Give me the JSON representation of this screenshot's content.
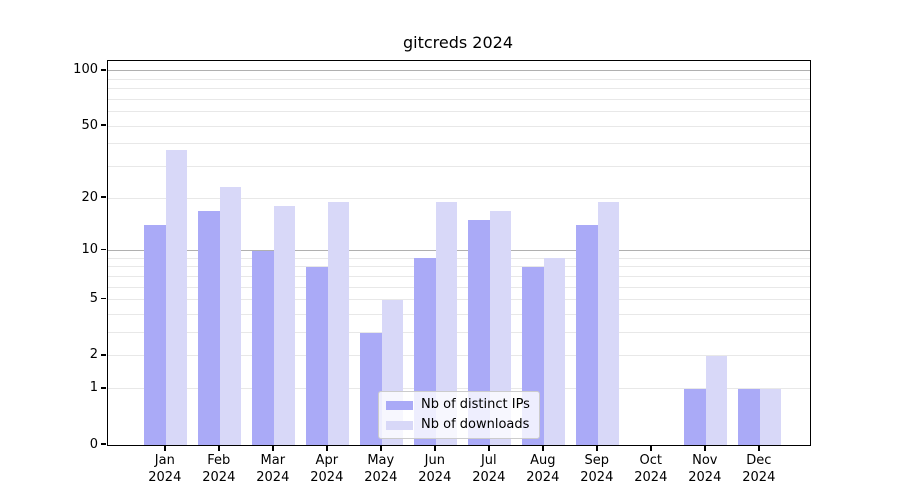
{
  "chart_data": {
    "type": "bar",
    "title": "gitcreds 2024",
    "scale": "log1p",
    "ylim": [
      0,
      113
    ],
    "yticks": [
      0,
      1,
      2,
      5,
      10,
      20,
      50,
      100
    ],
    "major_gridlines": [
      10,
      100
    ],
    "minor_gridlines": [
      1,
      2,
      3,
      4,
      5,
      6,
      7,
      8,
      9,
      20,
      30,
      40,
      50,
      60,
      70,
      80,
      90
    ],
    "grid": true,
    "legend_position": "lower center",
    "categories": [
      "Jan 2024",
      "Feb 2024",
      "Mar 2024",
      "Apr 2024",
      "May 2024",
      "Jun 2024",
      "Jul 2024",
      "Aug 2024",
      "Sep 2024",
      "Oct 2024",
      "Nov 2024",
      "Dec 2024"
    ],
    "series": [
      {
        "name": "Nb of distinct IPs",
        "color": "#aaaaf7",
        "values": [
          14,
          17,
          10,
          8,
          3,
          9,
          15,
          8,
          14,
          0,
          1,
          1
        ]
      },
      {
        "name": "Nb of downloads",
        "color": "#d8d8f8",
        "values": [
          37,
          23,
          18,
          19,
          5,
          19,
          17,
          9,
          19,
          0,
          2,
          1
        ]
      }
    ],
    "colors": {
      "major_grid": "#b0b0b0",
      "minor_grid": "#e8e8e8",
      "spine": "#000000",
      "text": "#000000"
    }
  }
}
